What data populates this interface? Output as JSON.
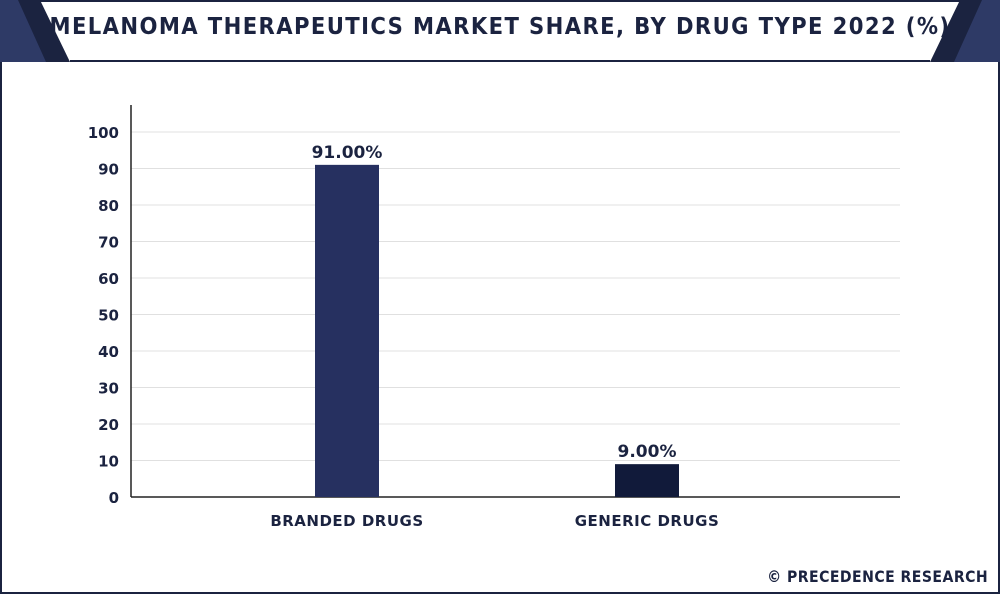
{
  "title": "MELANOMA THERAPEUTICS MARKET SHARE, BY DRUG TYPE 2022 (%)",
  "footer": "© PRECEDENCE RESEARCH",
  "colors": {
    "frame": "#1b2340",
    "bar_branded": "#263060",
    "bar_generic": "#111a3a",
    "grid": "#e0e0e0"
  },
  "chart_data": {
    "type": "bar",
    "title": "MELANOMA THERAPEUTICS MARKET SHARE, BY DRUG TYPE 2022 (%)",
    "categories": [
      "BRANDED DRUGS",
      "GENERIC DRUGS"
    ],
    "values": [
      91.0,
      9.0
    ],
    "data_labels": [
      "91.00%",
      "9.00%"
    ],
    "yticks": [
      0,
      10,
      20,
      30,
      40,
      50,
      60,
      70,
      80,
      90,
      100
    ],
    "ylim": [
      0,
      100
    ],
    "xlabel": "",
    "ylabel": "",
    "grid": true,
    "legend": "none"
  }
}
